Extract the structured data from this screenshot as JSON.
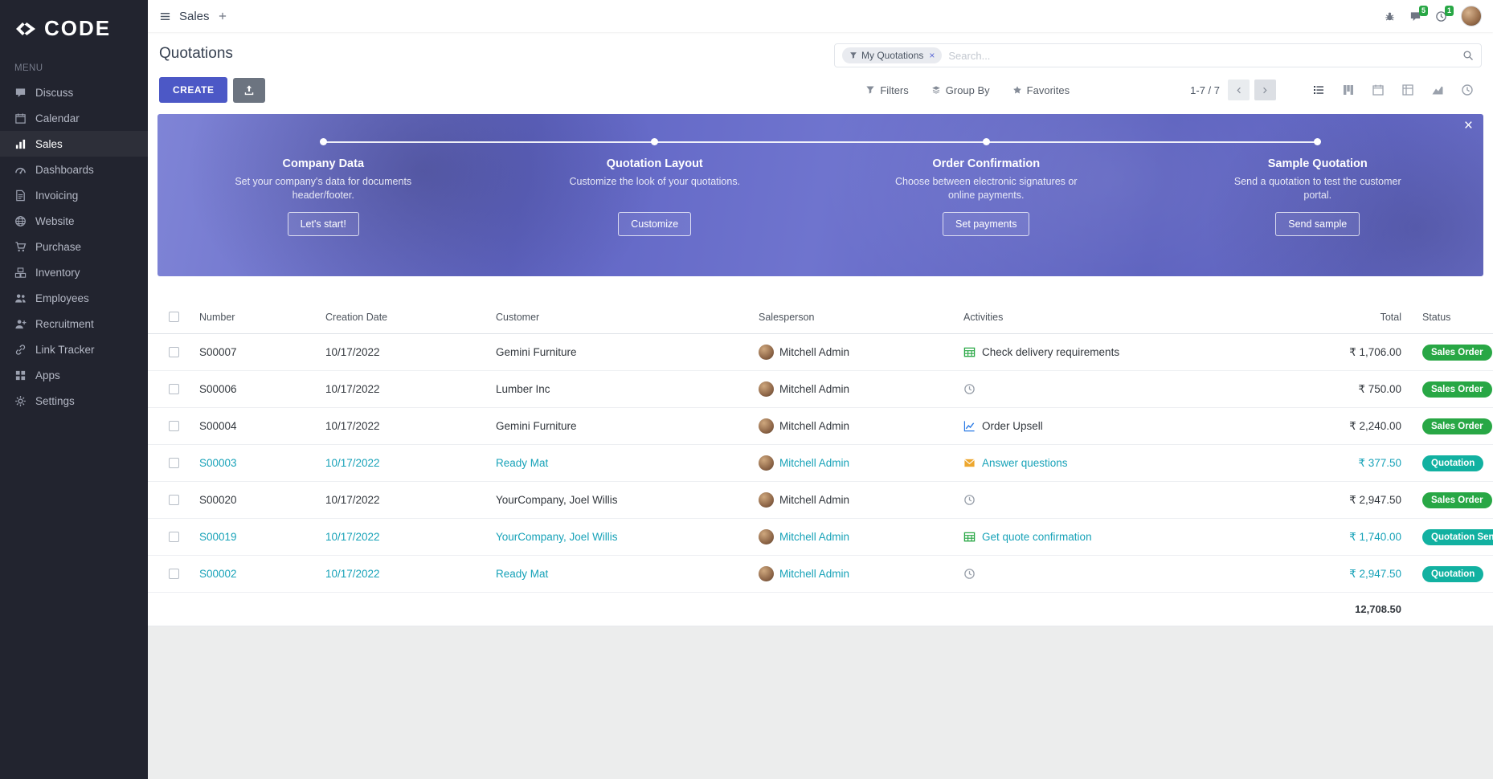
{
  "brand": {
    "name": "CODE"
  },
  "colors": {
    "accent": "#4c58c6",
    "sidebar_bg": "#22242f",
    "banner_purple": "#6065c4",
    "sales_order_badge": "#28a745",
    "quotation_badge": "#12b1a1",
    "highlight_text": "#17a2b8"
  },
  "topbar": {
    "app": "Sales",
    "add": "+",
    "chat_badge": "5",
    "clock_badge": "1"
  },
  "sidebar": {
    "menu_label": "MENU",
    "items": [
      {
        "label": "Discuss",
        "icon": "chat",
        "state": ""
      },
      {
        "label": "Calendar",
        "icon": "calendar",
        "state": ""
      },
      {
        "label": "Sales",
        "icon": "bars-chart",
        "state": "active"
      },
      {
        "label": "Dashboards",
        "icon": "gauge",
        "state": ""
      },
      {
        "label": "Invoicing",
        "icon": "file",
        "state": ""
      },
      {
        "label": "Website",
        "icon": "globe",
        "state": ""
      },
      {
        "label": "Purchase",
        "icon": "cart",
        "state": ""
      },
      {
        "label": "Inventory",
        "icon": "boxes",
        "state": ""
      },
      {
        "label": "Employees",
        "icon": "users",
        "state": ""
      },
      {
        "label": "Recruitment",
        "icon": "person-plus",
        "state": ""
      },
      {
        "label": "Link Tracker",
        "icon": "link",
        "state": ""
      },
      {
        "label": "Apps",
        "icon": "grid",
        "state": ""
      },
      {
        "label": "Settings",
        "icon": "gear",
        "state": ""
      }
    ]
  },
  "control": {
    "title": "Quotations",
    "filter_chip": "My Quotations",
    "remove_chip": "×",
    "search_placeholder": "Search...",
    "create": "CREATE",
    "filters": "Filters",
    "group_by": "Group By",
    "favorites": "Favorites",
    "pager": "1-7 / 7"
  },
  "banner": {
    "close": "×",
    "steps": [
      {
        "title": "Company Data",
        "desc": "Set your company's data for documents header/footer.",
        "button": "Let's start!"
      },
      {
        "title": "Quotation Layout",
        "desc": "Customize the look of your quotations.",
        "button": "Customize"
      },
      {
        "title": "Order Confirmation",
        "desc": "Choose between electronic signatures or online payments.",
        "button": "Set payments"
      },
      {
        "title": "Sample Quotation",
        "desc": "Send a quotation to test the customer portal.",
        "button": "Send sample"
      }
    ]
  },
  "table": {
    "headers": {
      "number": "Number",
      "date": "Creation Date",
      "customer": "Customer",
      "salesperson": "Salesperson",
      "activities": "Activities",
      "total": "Total",
      "status": "Status"
    },
    "rows": [
      {
        "number": "S00007",
        "date": "10/17/2022",
        "customer": "Gemini Furniture",
        "salesperson": "Mitchell Admin",
        "activity": "Check delivery requirements",
        "activity_icon": "spreadsheet",
        "activity_color": "green",
        "total": "₹ 1,706.00",
        "status": "Sales Order",
        "status_class": "green",
        "state": ""
      },
      {
        "number": "S00006",
        "date": "10/17/2022",
        "customer": "Lumber Inc",
        "salesperson": "Mitchell Admin",
        "activity": "",
        "activity_icon": "clock",
        "activity_color": "gray",
        "total": "₹ 750.00",
        "status": "Sales Order",
        "status_class": "green",
        "state": ""
      },
      {
        "number": "S00004",
        "date": "10/17/2022",
        "customer": "Gemini Furniture",
        "salesperson": "Mitchell Admin",
        "activity": "Order Upsell",
        "activity_icon": "chart-line",
        "activity_color": "blue",
        "total": "₹ 2,240.00",
        "status": "Sales Order",
        "status_class": "green",
        "state": ""
      },
      {
        "number": "S00003",
        "date": "10/17/2022",
        "customer": "Ready Mat",
        "salesperson": "Mitchell Admin",
        "activity": "Answer questions",
        "activity_icon": "envelope",
        "activity_color": "orange",
        "total": "₹ 377.50",
        "status": "Quotation",
        "status_class": "teal",
        "state": "hl"
      },
      {
        "number": "S00020",
        "date": "10/17/2022",
        "customer": "YourCompany, Joel Willis",
        "salesperson": "Mitchell Admin",
        "activity": "",
        "activity_icon": "clock",
        "activity_color": "gray",
        "total": "₹ 2,947.50",
        "status": "Sales Order",
        "status_class": "green",
        "state": ""
      },
      {
        "number": "S00019",
        "date": "10/17/2022",
        "customer": "YourCompany, Joel Willis",
        "salesperson": "Mitchell Admin",
        "activity": "Get quote confirmation",
        "activity_icon": "spreadsheet",
        "activity_color": "green",
        "total": "₹ 1,740.00",
        "status": "Quotation Sent",
        "status_class": "teal",
        "state": "hl"
      },
      {
        "number": "S00002",
        "date": "10/17/2022",
        "customer": "Ready Mat",
        "salesperson": "Mitchell Admin",
        "activity": "",
        "activity_icon": "clock",
        "activity_color": "gray",
        "total": "₹ 2,947.50",
        "status": "Quotation",
        "status_class": "teal",
        "state": "hl"
      }
    ],
    "footer_total": "12,708.50"
  }
}
